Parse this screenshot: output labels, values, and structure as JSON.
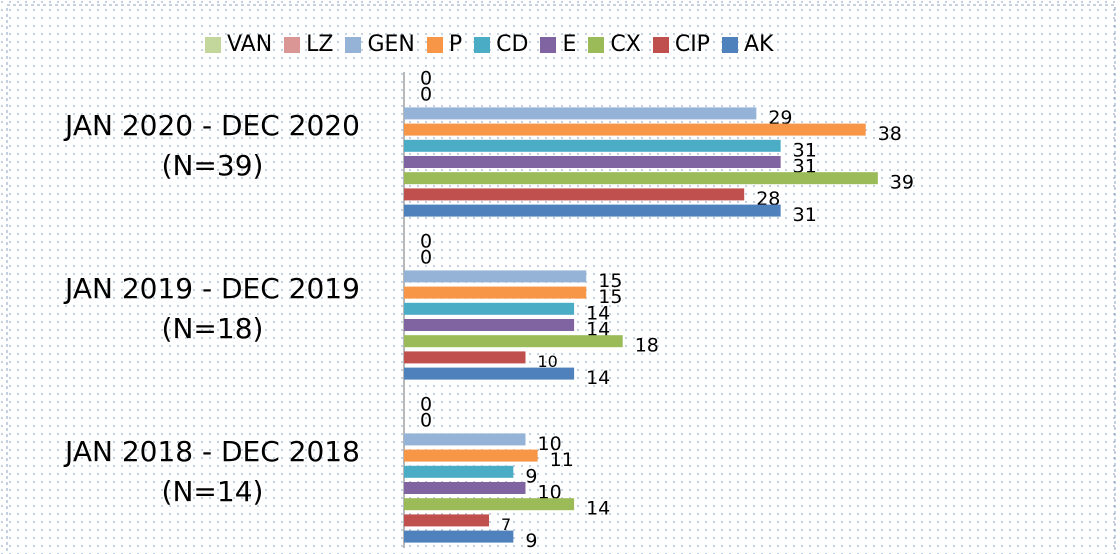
{
  "chart_data": {
    "type": "bar",
    "orientation": "horizontal",
    "categories": [
      "JAN 2020 - DEC 2020 (N=39)",
      "JAN 2019 -  DEC 2019 (N=18)",
      "JAN 2018 - DEC 2018 (N=14)"
    ],
    "series": [
      {
        "name": "VAN",
        "color": "#c3d69b",
        "values": [
          0,
          0,
          0
        ]
      },
      {
        "name": "LZ",
        "color": "#d99694",
        "values": [
          0,
          0,
          0
        ]
      },
      {
        "name": "GEN",
        "color": "#95b3d7",
        "values": [
          29,
          15,
          10
        ]
      },
      {
        "name": "P",
        "color": "#f79646",
        "values": [
          38,
          15,
          11
        ]
      },
      {
        "name": "CD",
        "color": "#4bacc6",
        "values": [
          31,
          14,
          9
        ]
      },
      {
        "name": "E",
        "color": "#8064a2",
        "values": [
          31,
          14,
          10
        ]
      },
      {
        "name": "CX",
        "color": "#9bbb59",
        "values": [
          39,
          18,
          14
        ]
      },
      {
        "name": "CIP",
        "color": "#c0504d",
        "values": [
          28,
          10,
          7
        ]
      },
      {
        "name": "AK",
        "color": "#4f81bd",
        "values": [
          31,
          14,
          9
        ]
      }
    ],
    "legend": "top"
  }
}
